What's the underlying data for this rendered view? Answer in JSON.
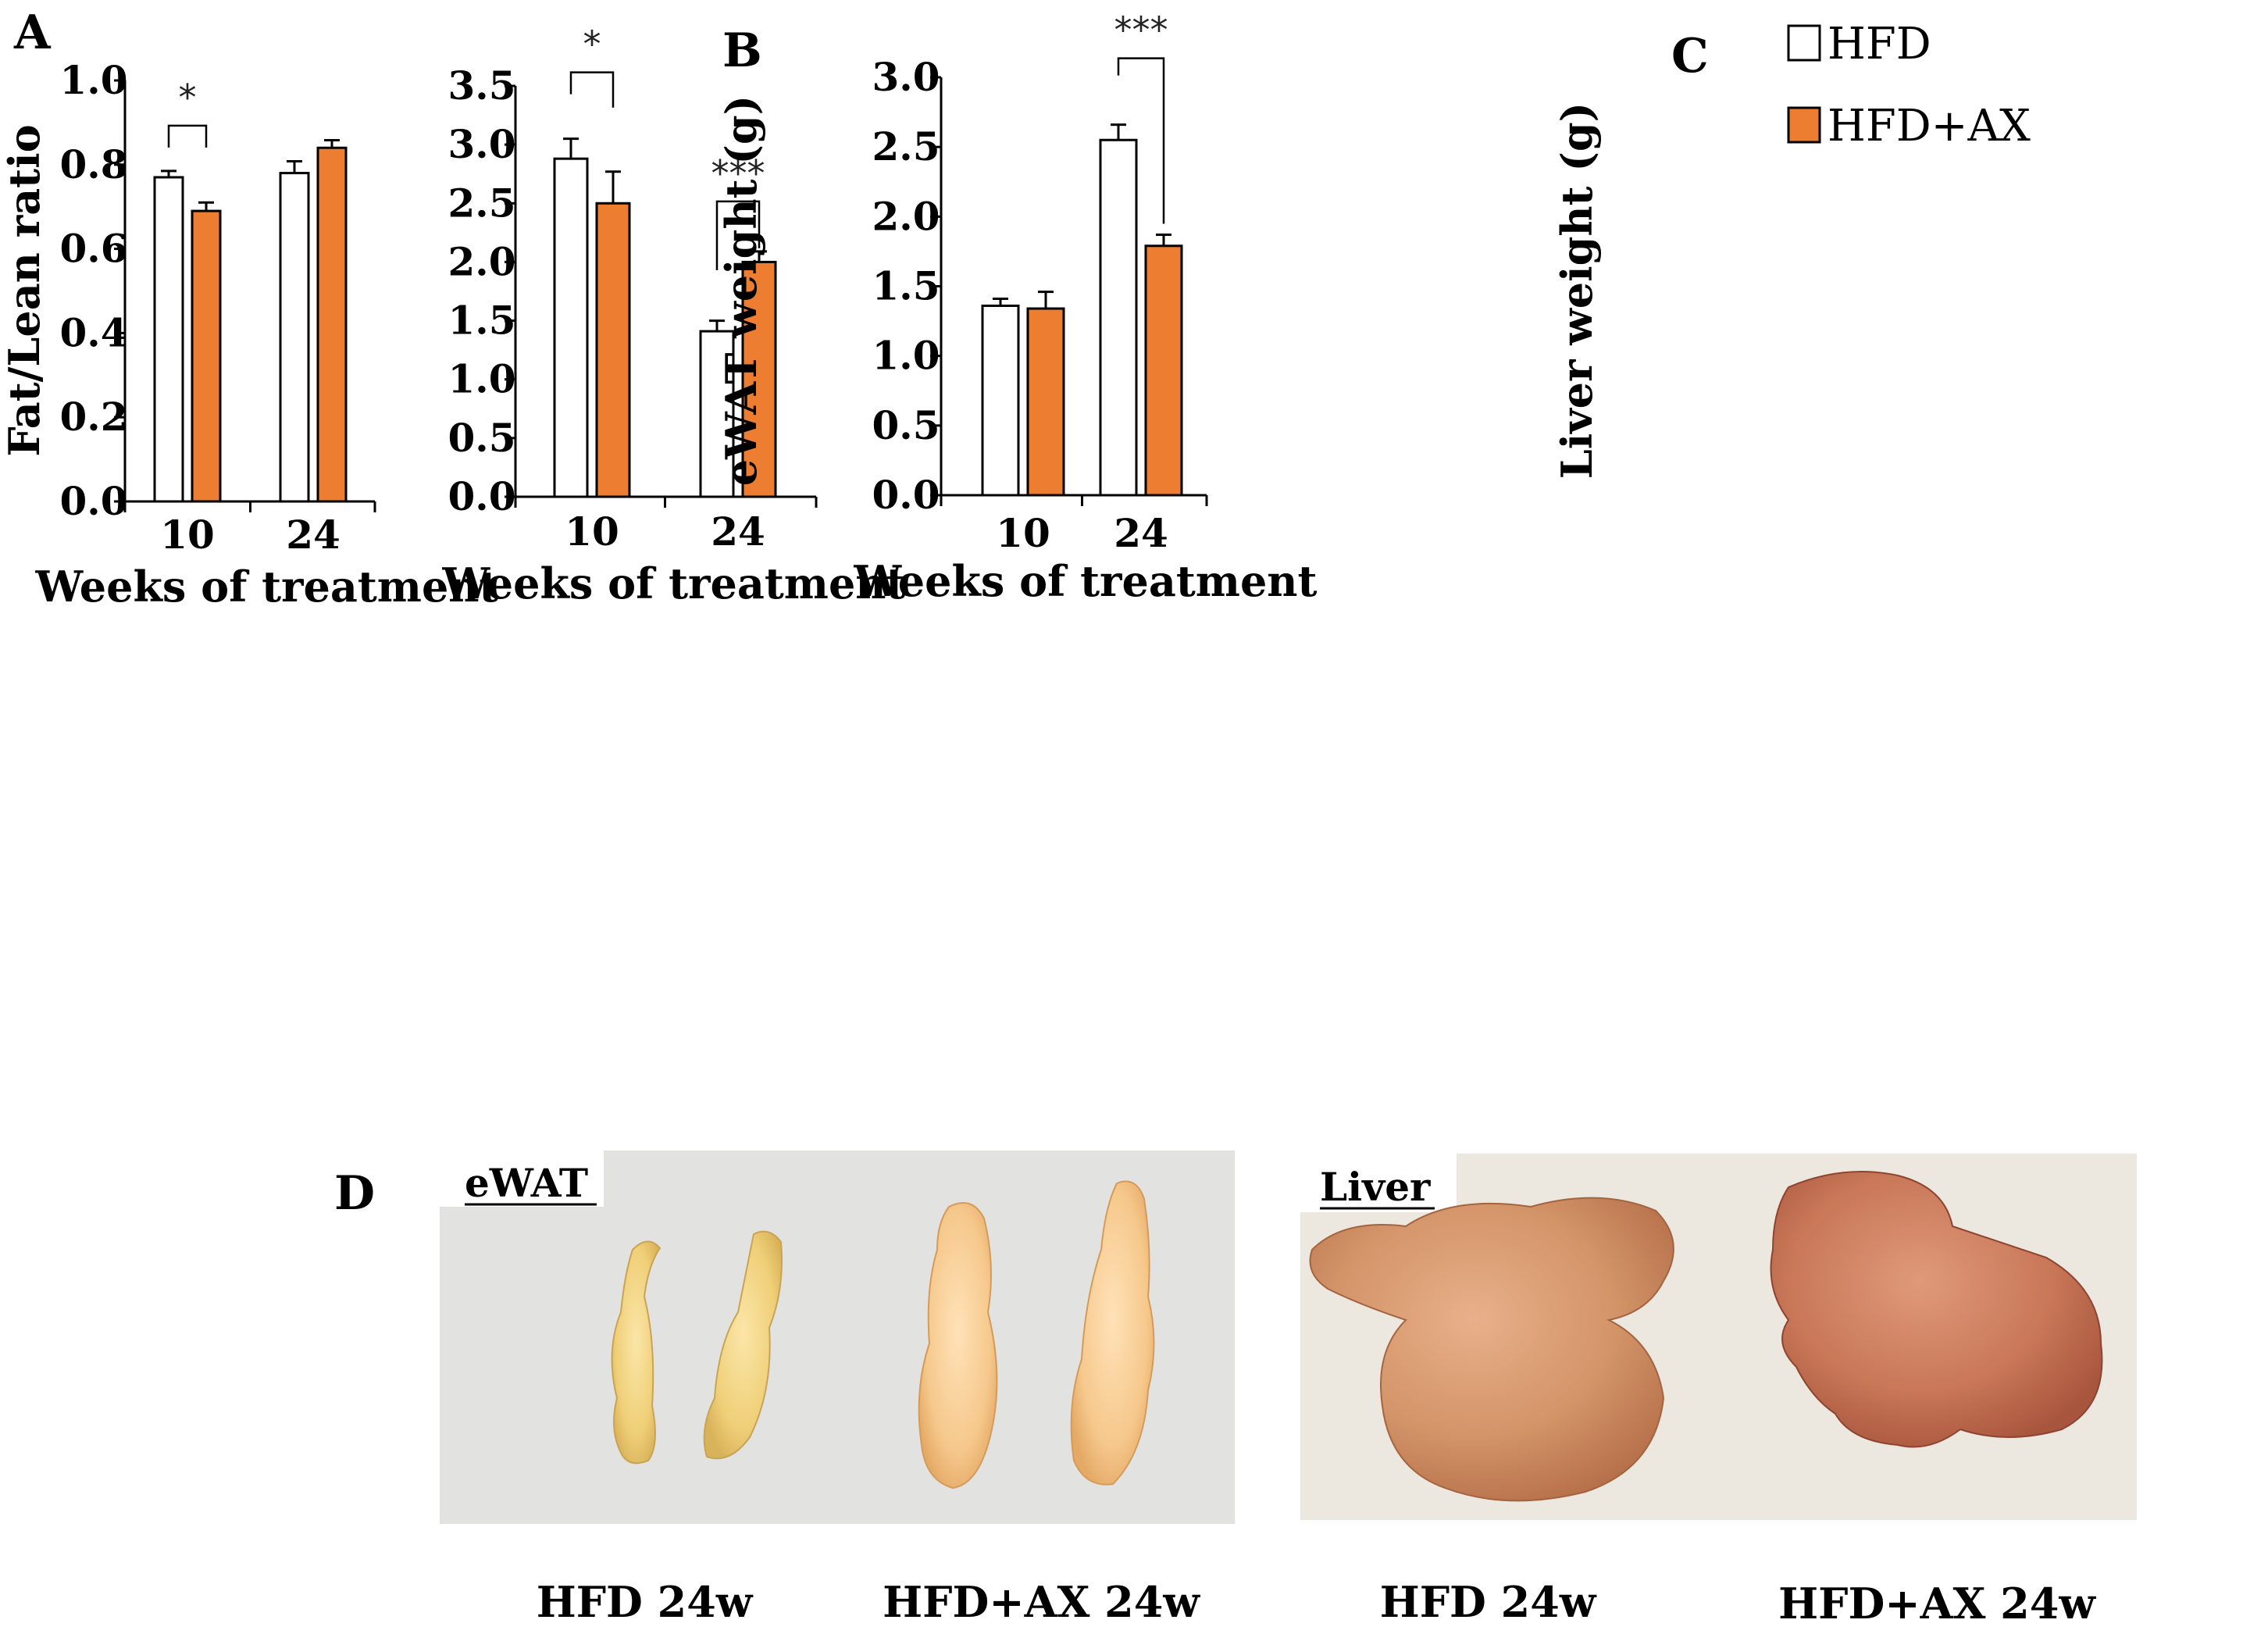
{
  "colors": {
    "hfd": "#ffffff",
    "hfd_ax": "#ed7d31",
    "stroke": "#000000"
  },
  "legend": {
    "hfd": "HFD",
    "hfd_ax": "HFD+AX"
  },
  "chart_data": [
    {
      "type": "bar",
      "panel": "A",
      "categories": [
        "10",
        "24"
      ],
      "series": [
        {
          "name": "HFD",
          "values": [
            0.77,
            0.78
          ],
          "errors": [
            0.015,
            0.028
          ]
        },
        {
          "name": "HFD+AX",
          "values": [
            0.69,
            0.84
          ],
          "errors": [
            0.02,
            0.018
          ]
        }
      ],
      "significance": [
        {
          "category": "10",
          "label": "*"
        }
      ],
      "xlabel": "Weeks of treatment",
      "ylabel": "Fat/Lean ratio",
      "ylim": [
        0,
        1.0
      ],
      "yticks": [
        "0.0",
        "0.2",
        "0.4",
        "0.6",
        "0.8",
        "1.0"
      ]
    },
    {
      "type": "bar",
      "panel": "B",
      "categories": [
        "10",
        "24"
      ],
      "series": [
        {
          "name": "HFD",
          "values": [
            2.88,
            1.41
          ],
          "errors": [
            0.17,
            0.09
          ]
        },
        {
          "name": "HFD+AX",
          "values": [
            2.5,
            2.0
          ],
          "errors": [
            0.27,
            0.09
          ]
        }
      ],
      "significance": [
        {
          "category": "10",
          "label": "*"
        },
        {
          "category": "24",
          "label": "***"
        }
      ],
      "xlabel": "Weeks of treatment",
      "ylabel": "eWAT weight (g)",
      "ylim": [
        0,
        3.5
      ],
      "yticks": [
        "0.0",
        "0.5",
        "1.0",
        "1.5",
        "2.0",
        "2.5",
        "3.0",
        "3.5"
      ]
    },
    {
      "type": "bar",
      "panel": "C",
      "categories": [
        "10",
        "24"
      ],
      "series": [
        {
          "name": "HFD",
          "values": [
            1.36,
            2.55
          ],
          "errors": [
            0.05,
            0.11
          ]
        },
        {
          "name": "HFD+AX",
          "values": [
            1.34,
            1.79
          ],
          "errors": [
            0.12,
            0.08
          ]
        }
      ],
      "significance": [
        {
          "category": "24",
          "label": "***"
        }
      ],
      "xlabel": "Weeks of treatment",
      "ylabel": "Liver weight (g)",
      "ylim": [
        0,
        3.0
      ],
      "yticks": [
        "0.0",
        "0.5",
        "1.0",
        "1.5",
        "2.0",
        "2.5",
        "3.0"
      ]
    }
  ],
  "panel_d": {
    "letter": "D",
    "ewat_label": "eWAT",
    "liver_label": "Liver",
    "captions": [
      "HFD 24w",
      "HFD+AX 24w",
      "HFD 24w",
      "HFD+AX 24w"
    ]
  }
}
